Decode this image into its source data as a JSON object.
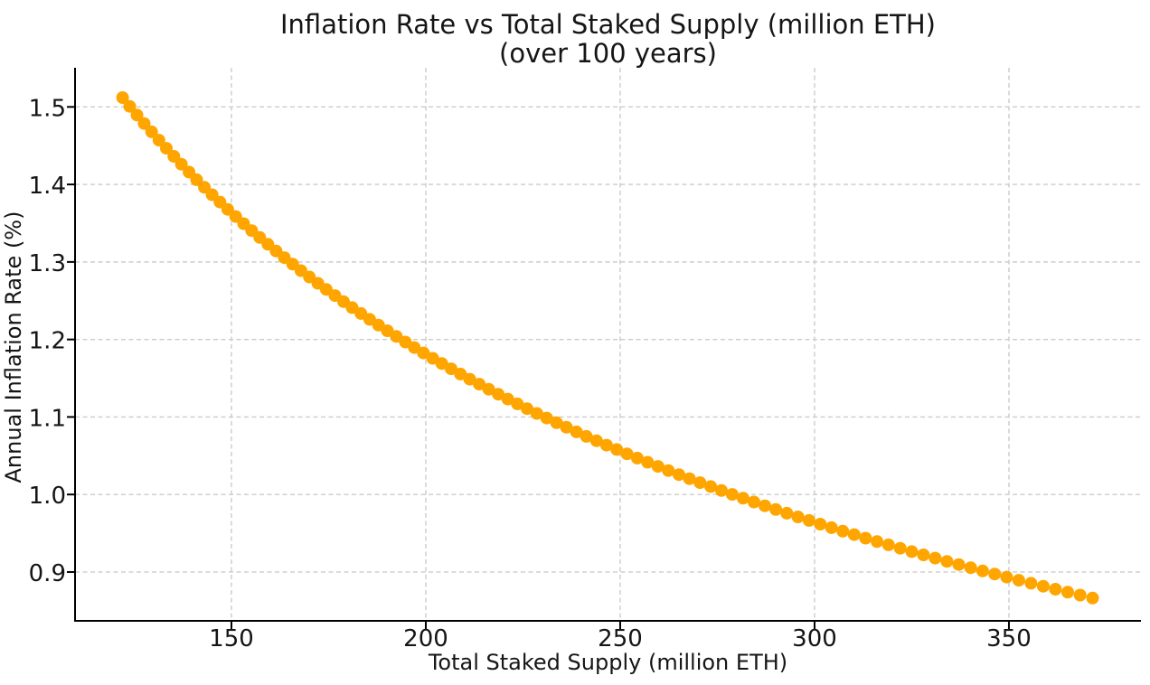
{
  "figure": {
    "background": "#ffffff"
  },
  "chart_data": {
    "type": "scatter",
    "title_line1": "Inflation Rate vs Total Staked Supply (million ETH)",
    "title_line2": "(over 100 years)",
    "xlabel": "Total Staked Supply (million ETH)",
    "ylabel": "Annual Inflation Rate (%)",
    "n_points": 100,
    "legend": "none",
    "grid": "dashed",
    "grid_color": "#cccccc",
    "axis_color": "#000000",
    "text_color": "#151515",
    "marker_color": "#FFA500",
    "marker_radius_px": 7,
    "xlim": [
      109.77,
      383.96
    ],
    "ylim": [
      0.837,
      1.5505
    ],
    "xticks": [
      150,
      200,
      250,
      300,
      350
    ],
    "xtick_labels": [
      "150",
      "200",
      "250",
      "300",
      "350"
    ],
    "yticks": [
      0.9,
      1.0,
      1.1,
      1.2,
      1.3,
      1.4,
      1.5
    ],
    "ytick_labels": [
      "0.9",
      "1.0",
      "1.1",
      "1.2",
      "1.3",
      "1.4",
      "1.5"
    ],
    "x": [
      122.0,
      123.84,
      125.7,
      127.57,
      129.46,
      131.35,
      133.27,
      135.19,
      137.13,
      139.09,
      141.05,
      143.04,
      145.03,
      147.04,
      149.06,
      151.1,
      153.15,
      155.21,
      157.29,
      159.38,
      161.49,
      163.61,
      165.74,
      167.89,
      170.05,
      172.23,
      174.41,
      176.62,
      178.83,
      181.06,
      183.31,
      185.57,
      187.84,
      190.12,
      192.42,
      194.74,
      197.06,
      199.4,
      201.76,
      204.13,
      206.51,
      208.9,
      211.31,
      213.74,
      216.18,
      218.63,
      221.09,
      223.57,
      226.06,
      228.57,
      231.09,
      233.63,
      236.17,
      238.74,
      241.31,
      243.9,
      246.5,
      249.12,
      251.75,
      254.4,
      257.05,
      259.73,
      262.41,
      265.11,
      267.83,
      270.55,
      273.29,
      276.05,
      278.82,
      281.6,
      284.4,
      287.21,
      290.03,
      292.87,
      295.72,
      298.59,
      301.47,
      304.36,
      307.27,
      310.19,
      313.13,
      316.08,
      319.04,
      322.02,
      325.01,
      328.01,
      331.03,
      334.06,
      337.1,
      340.16,
      343.24,
      346.32,
      349.42,
      352.54,
      355.67,
      358.81,
      361.97,
      365.13,
      368.32,
      371.51
    ],
    "y": [
      1.512,
      1.5007,
      1.4895,
      1.4786,
      1.4678,
      1.4571,
      1.4466,
      1.4363,
      1.4261,
      1.416,
      1.4061,
      1.3963,
      1.3867,
      1.3772,
      1.3678,
      1.3586,
      1.3494,
      1.3404,
      1.3316,
      1.3228,
      1.3141,
      1.3056,
      1.2972,
      1.2888,
      1.2806,
      1.2725,
      1.2645,
      1.2566,
      1.2488,
      1.2411,
      1.2335,
      1.2259,
      1.2185,
      1.2112,
      1.2039,
      1.1967,
      1.1896,
      1.1826,
      1.1757,
      1.1689,
      1.1621,
      1.1554,
      1.1488,
      1.1423,
      1.1358,
      1.1294,
      1.1231,
      1.1169,
      1.1107,
      1.1046,
      1.0986,
      1.0926,
      1.0867,
      1.0808,
      1.075,
      1.0693,
      1.0636,
      1.058,
      1.0525,
      1.047,
      1.0416,
      1.0362,
      1.0309,
      1.0256,
      1.0204,
      1.0153,
      1.0102,
      1.0051,
      1.0001,
      0.9952,
      0.9903,
      0.9854,
      0.9806,
      0.9758,
      0.9711,
      0.9665,
      0.9618,
      0.9572,
      0.9527,
      0.9482,
      0.9437,
      0.9393,
      0.935,
      0.9306,
      0.9263,
      0.9221,
      0.9179,
      0.9137,
      0.9096,
      0.9055,
      0.9014,
      0.8974,
      0.8934,
      0.8894,
      0.8855,
      0.8816,
      0.8778,
      0.8739,
      0.8702,
      0.8664
    ]
  }
}
